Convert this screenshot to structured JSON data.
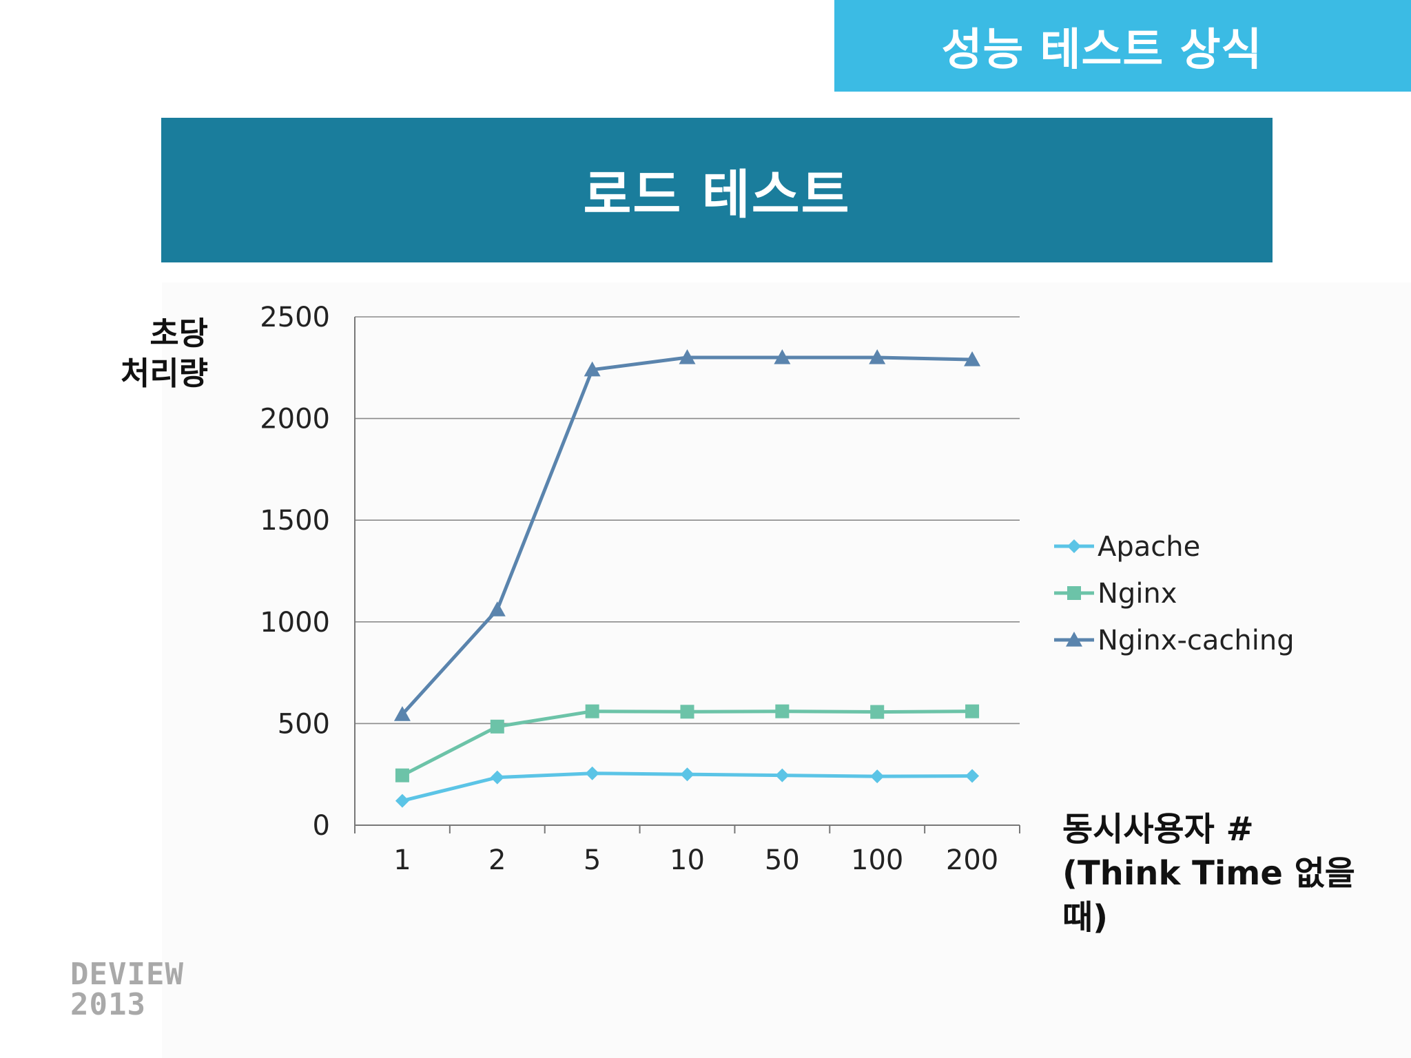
{
  "header": {
    "section_title": "성능 테스트 상식"
  },
  "slide": {
    "title": "로드 테스트"
  },
  "logo": {
    "line1": "DEVIEW",
    "line2": "2013"
  },
  "colors": {
    "banner": "#3bbbe4",
    "title_bar": "#1a7d9c",
    "apache": "#5bc4e6",
    "nginx": "#6cc3a8",
    "nginx_caching": "#5a84ad"
  },
  "chart_data": {
    "type": "line",
    "categories": [
      "1",
      "2",
      "5",
      "10",
      "50",
      "100",
      "200"
    ],
    "series": [
      {
        "name": "Apache",
        "marker": "diamond",
        "values": [
          120,
          235,
          255,
          250,
          245,
          240,
          242
        ]
      },
      {
        "name": "Nginx",
        "marker": "square",
        "values": [
          245,
          485,
          560,
          558,
          560,
          557,
          560
        ]
      },
      {
        "name": "Nginx-caching",
        "marker": "triangle",
        "values": [
          545,
          1060,
          2240,
          2300,
          2300,
          2300,
          2290
        ]
      }
    ],
    "ylabel_lines": [
      "초당",
      "처리량"
    ],
    "xlabel_lines": [
      "동시사용자 #",
      "(Think Time 없을 때)"
    ],
    "yticks": [
      "0",
      "500",
      "1000",
      "1500",
      "2000",
      "2500"
    ],
    "ylim": [
      0,
      2500
    ],
    "grid": true,
    "legend_position": "right"
  }
}
